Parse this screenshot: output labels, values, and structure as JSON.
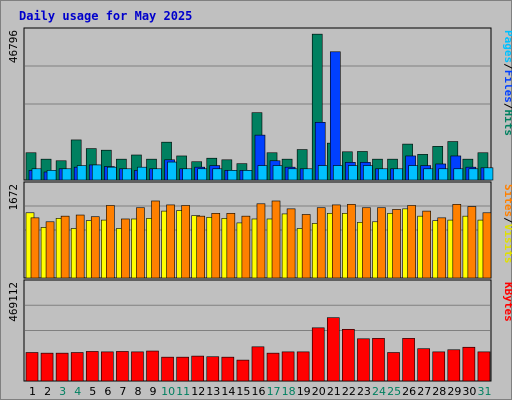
{
  "chart_data": {
    "type": "bar",
    "title": "Daily usage for May 2025",
    "days": [
      "1",
      "2",
      "3",
      "4",
      "5",
      "6",
      "7",
      "8",
      "9",
      "10",
      "11",
      "12",
      "13",
      "14",
      "15",
      "16",
      "17",
      "18",
      "19",
      "20",
      "21",
      "22",
      "23",
      "24",
      "25",
      "26",
      "27",
      "28",
      "29",
      "30",
      "31"
    ],
    "weekend_days": [
      "3",
      "4",
      "10",
      "11",
      "17",
      "18",
      "24",
      "25",
      "31"
    ],
    "panels": [
      {
        "id": "hits-files-pages",
        "max_label": "46796",
        "ymax": 46796,
        "legend": [
          "Pages",
          "/",
          "Files",
          "/",
          "Hits"
        ],
        "legend_colors": [
          "#00c0ff",
          "#000000",
          "#0040ff",
          "#000000",
          "#008060"
        ],
        "series": [
          {
            "name": "Hits",
            "color": "#008060",
            "values": [
              8500,
              6500,
              6000,
              12500,
              9800,
              9300,
              6500,
              7800,
              6500,
              11800,
              7500,
              5700,
              6800,
              6300,
              5100,
              21000,
              8500,
              6500,
              9500,
              45500,
              11500,
              8800,
              8900,
              6500,
              6500,
              11200,
              8000,
              10500,
              12000,
              6500,
              8500
            ]
          },
          {
            "name": "Files",
            "color": "#0040ff",
            "values": [
              3000,
              2500,
              3500,
              4000,
              4700,
              4200,
              3500,
              3000,
              3500,
              6300,
              3500,
              4000,
              4500,
              3000,
              3000,
              14000,
              6000,
              4000,
              3500,
              18000,
              40000,
              5500,
              5500,
              3500,
              3500,
              7500,
              4500,
              5000,
              7500,
              4000,
              3800
            ]
          },
          {
            "name": "Pages",
            "color": "#00c0ff",
            "values": [
              3500,
              3000,
              3500,
              4500,
              4700,
              4000,
              3500,
              4000,
              3500,
              5600,
              3500,
              3500,
              3500,
              3000,
              3000,
              4500,
              4500,
              3500,
              3500,
              4500,
              4500,
              4500,
              4500,
              3500,
              3500,
              4500,
              3500,
              3500,
              3500,
              3500,
              3800
            ]
          }
        ]
      },
      {
        "id": "visits-sites",
        "max_label": "1672",
        "ymax": 1672,
        "legend": [
          "Sites",
          "/",
          "Visits"
        ],
        "legend_colors": [
          "#ff8000",
          "#000000",
          "#e0e000"
        ],
        "series": [
          {
            "name": "Visits",
            "color": "#ffff00",
            "values": [
              1160,
              900,
              1060,
              880,
              1020,
              1030,
              880,
              1050,
              1060,
              1190,
              1200,
              1110,
              1080,
              1060,
              980,
              1050,
              1050,
              1140,
              880,
              970,
              1150,
              1150,
              990,
              1000,
              1150,
              1230,
              1100,
              1020,
              1030,
              1100,
              1030
            ]
          },
          {
            "name": "Sites",
            "color": "#ff8000",
            "values": [
              1070,
              1000,
              1100,
              1120,
              1090,
              1290,
              1050,
              1250,
              1370,
              1300,
              1290,
              1100,
              1150,
              1150,
              1100,
              1320,
              1370,
              1230,
              1130,
              1250,
              1300,
              1310,
              1250,
              1250,
              1220,
              1290,
              1190,
              1070,
              1310,
              1270,
              1160
            ]
          }
        ]
      },
      {
        "id": "kbytes",
        "max_label": "469112",
        "ymax": 469112,
        "legend": [
          "KBytes"
        ],
        "legend_colors": [
          "#ff0000"
        ],
        "series": [
          {
            "name": "KBytes",
            "color": "#ff0000",
            "values": [
              135000,
              132000,
              132000,
              135000,
              140000,
              138000,
              140000,
              138000,
              142000,
              113000,
              113000,
              118000,
              115000,
              113000,
              99000,
              162000,
              132000,
              138000,
              138000,
              252000,
              300000,
              245000,
              200000,
              202000,
              135000,
              202000,
              153000,
              138000,
              148000,
              160000,
              138000
            ]
          }
        ]
      }
    ]
  }
}
